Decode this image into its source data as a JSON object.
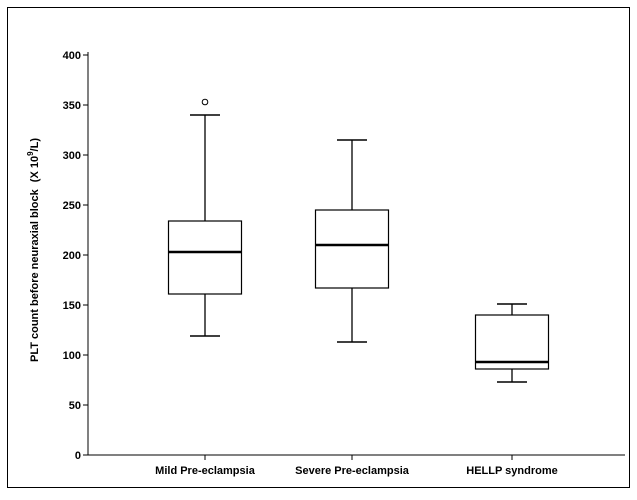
{
  "chart_data": {
    "type": "boxplot",
    "title": "",
    "xlabel": "",
    "ylabel": "PLT count before neuraxial block",
    "ylabel_unit_prefix": "(X 10",
    "ylabel_unit_exp": "9",
    "ylabel_unit_suffix": "/L)",
    "ylim": [
      0,
      400
    ],
    "yticks": [
      "0",
      "50",
      "100",
      "150",
      "200",
      "250",
      "300",
      "350",
      "400"
    ],
    "grid": false,
    "legend": "none",
    "colors": {
      "box_fill": "#ffffff",
      "stroke": "#000000"
    },
    "categories": [
      "Mild Pre-eclampsia",
      "Severe Pre-eclampsia",
      "HELLP syndrome"
    ],
    "boxes": [
      {
        "whisker_low": 119,
        "q1": 161,
        "median": 203,
        "q3": 234,
        "whisker_high": 340,
        "outliers": [
          353
        ]
      },
      {
        "whisker_low": 113,
        "q1": 167,
        "median": 210,
        "q3": 245,
        "whisker_high": 315,
        "outliers": []
      },
      {
        "whisker_low": 73,
        "q1": 86,
        "median": 93,
        "q3": 140,
        "whisker_high": 151,
        "outliers": []
      }
    ]
  }
}
